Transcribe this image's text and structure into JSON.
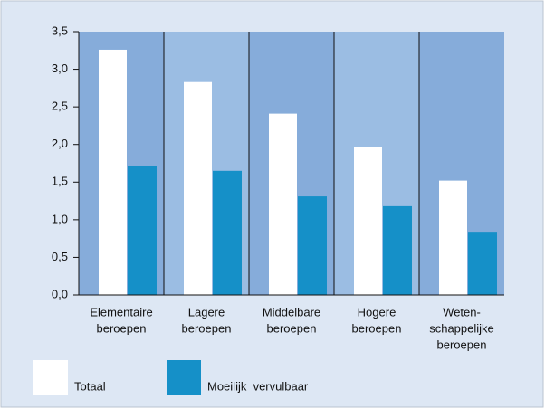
{
  "chart_data": {
    "type": "bar",
    "categories": [
      [
        "Elementaire",
        "beroepen"
      ],
      [
        "Lagere",
        "beroepen"
      ],
      [
        "Middelbare",
        "beroepen"
      ],
      [
        "Hogere",
        "beroepen"
      ],
      [
        "Weten-",
        "schappelijke",
        "beroepen"
      ]
    ],
    "series": [
      {
        "name": "Totaal",
        "color": "#ffffff",
        "values": [
          3.26,
          2.83,
          2.41,
          1.97,
          1.52
        ]
      },
      {
        "name": "Moeilijk  vervulbaar",
        "color": "#1590c8",
        "values": [
          1.72,
          1.65,
          1.31,
          1.18,
          0.84
        ]
      }
    ],
    "ylim": [
      0,
      3.5
    ],
    "yticks": [
      {
        "value": 0,
        "label": "0,0"
      },
      {
        "value": 0.5,
        "label": "0,5"
      },
      {
        "value": 1,
        "label": "1,0"
      },
      {
        "value": 1.5,
        "label": "1,5"
      },
      {
        "value": 2,
        "label": "2,0"
      },
      {
        "value": 2.5,
        "label": "2,5"
      },
      {
        "value": 3,
        "label": "3,0"
      },
      {
        "value": 3.5,
        "label": "3,5"
      }
    ]
  }
}
